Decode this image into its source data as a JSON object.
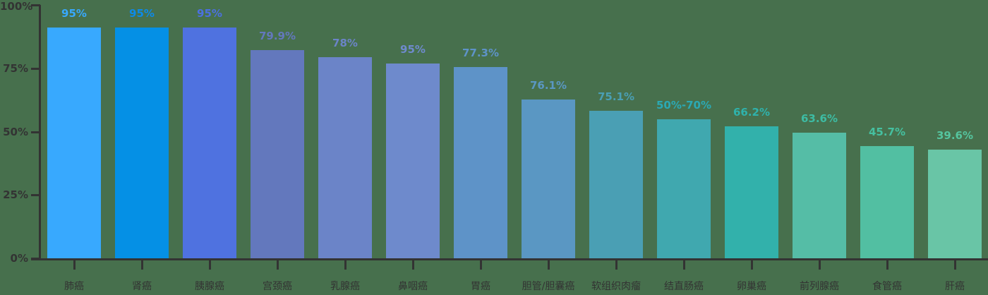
{
  "chart_data": {
    "type": "bar",
    "title": "",
    "xlabel": "",
    "ylabel": "",
    "categories": [
      "肺癌",
      "肾癌",
      "胰腺癌",
      "宫颈癌",
      "乳腺癌",
      "鼻咽癌",
      "胃癌",
      "胆管/胆囊癌",
      "软组织肉瘤",
      "结直肠癌",
      "卵巢癌",
      "前列腺癌",
      "食管癌",
      "肝癌"
    ],
    "value_labels": [
      "95%",
      "95%",
      "95%",
      "79.9%",
      "78%",
      "95%",
      "77.3%",
      "76.1%",
      "75.1%",
      "50%-70%",
      "66.2%",
      "63.6%",
      "45.7%",
      "39.6%"
    ],
    "bar_display_heights_pct": [
      91,
      91,
      91,
      82.3,
      79.5,
      77,
      75.5,
      62.7,
      58.2,
      54.9,
      52.1,
      49.6,
      44.4,
      42.9
    ],
    "bar_colors": [
      "#38a9fe",
      "#0590e5",
      "#4f72e0",
      "#6378bd",
      "#6b84c8",
      "#6e8acc",
      "#5e93c8",
      "#5a97c3",
      "#4a9fb4",
      "#40a8af",
      "#32b1ab",
      "#55bda6",
      "#52bfa2",
      "#69c5a6"
    ],
    "label_colors": [
      "#38a9fe",
      "#0d8ae8",
      "#4b70e1",
      "#6378bd",
      "#6b84c8",
      "#6e8acc",
      "#5e93c8",
      "#5a97c3",
      "#4a9fb4",
      "#2ba9b4",
      "#2fb2ac",
      "#3dbca4",
      "#45c0a0",
      "#55c49e"
    ],
    "ylim": [
      0,
      100
    ],
    "y_tick_labels": [
      "0%",
      "25%",
      "50%",
      "75%",
      "100%"
    ],
    "y_tick_values": [
      0,
      25,
      50,
      75,
      100
    ],
    "grid": false,
    "legend": "none"
  },
  "colors": {
    "background": "#47704d",
    "axis": "#333333",
    "x_label_text": "#333333",
    "y_label_text": "#333333"
  }
}
